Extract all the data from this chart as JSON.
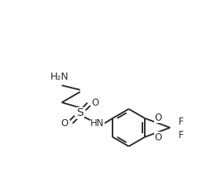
{
  "bg_color": "#ffffff",
  "line_color": "#2b2b2b",
  "atom_colors": {
    "N": "#2b2b2b",
    "O": "#2b2b2b",
    "S": "#2b2b2b",
    "F": "#2b2b2b",
    "HN": "#2b2b2b",
    "H2N": "#2b2b2b"
  },
  "figsize": [
    2.72,
    2.41
  ],
  "dpi": 100,
  "lw": 1.4,
  "fs": 8.5,
  "xlim": [
    -1.4,
    2.5
  ],
  "ylim": [
    -2.0,
    1.6
  ]
}
